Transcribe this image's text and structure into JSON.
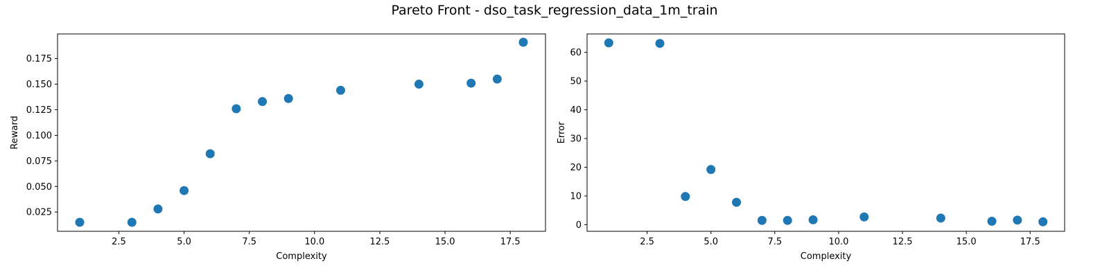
{
  "figure": {
    "suptitle": "Pareto Front - dso_task_regression_data_1m_train"
  },
  "colors": {
    "marker": "#1f77b4",
    "axis": "#000000",
    "background": "#ffffff"
  },
  "chart_data": [
    {
      "type": "scatter",
      "title": "",
      "xlabel": "Complexity",
      "ylabel": "Reward",
      "xlim": [
        0.15,
        18.85
      ],
      "ylim": [
        0.0062,
        0.1991
      ],
      "xticks": [
        2.5,
        5.0,
        7.5,
        10.0,
        12.5,
        15.0,
        17.5
      ],
      "xtick_labels": [
        "2.5",
        "5.0",
        "7.5",
        "10.0",
        "12.5",
        "15.0",
        "17.5"
      ],
      "yticks": [
        0.025,
        0.05,
        0.075,
        0.1,
        0.125,
        0.15,
        0.175
      ],
      "ytick_labels": [
        "0.025",
        "0.050",
        "0.075",
        "0.100",
        "0.125",
        "0.150",
        "0.175"
      ],
      "grid": false,
      "x": [
        1,
        3,
        4,
        5,
        6,
        7,
        8,
        9,
        11,
        14,
        16,
        17,
        18
      ],
      "y": [
        0.015,
        0.015,
        0.028,
        0.046,
        0.082,
        0.126,
        0.133,
        0.136,
        0.144,
        0.15,
        0.151,
        0.155,
        0.191
      ]
    },
    {
      "type": "scatter",
      "title": "",
      "xlabel": "Complexity",
      "ylabel": "Error",
      "xlim": [
        0.15,
        18.85
      ],
      "ylim": [
        -2.3,
        66.4
      ],
      "xticks": [
        2.5,
        5.0,
        7.5,
        10.0,
        12.5,
        15.0,
        17.5
      ],
      "xtick_labels": [
        "2.5",
        "5.0",
        "7.5",
        "10.0",
        "12.5",
        "15.0",
        "17.5"
      ],
      "yticks": [
        0,
        10,
        20,
        30,
        40,
        50,
        60
      ],
      "ytick_labels": [
        "0",
        "10",
        "20",
        "30",
        "40",
        "50",
        "60"
      ],
      "grid": false,
      "x": [
        1,
        3,
        4,
        5,
        6,
        7,
        8,
        9,
        11,
        14,
        16,
        17,
        18
      ],
      "y": [
        63.3,
        63.1,
        9.8,
        19.2,
        7.8,
        1.5,
        1.5,
        1.7,
        2.7,
        2.3,
        1.2,
        1.6,
        1.0
      ]
    }
  ]
}
